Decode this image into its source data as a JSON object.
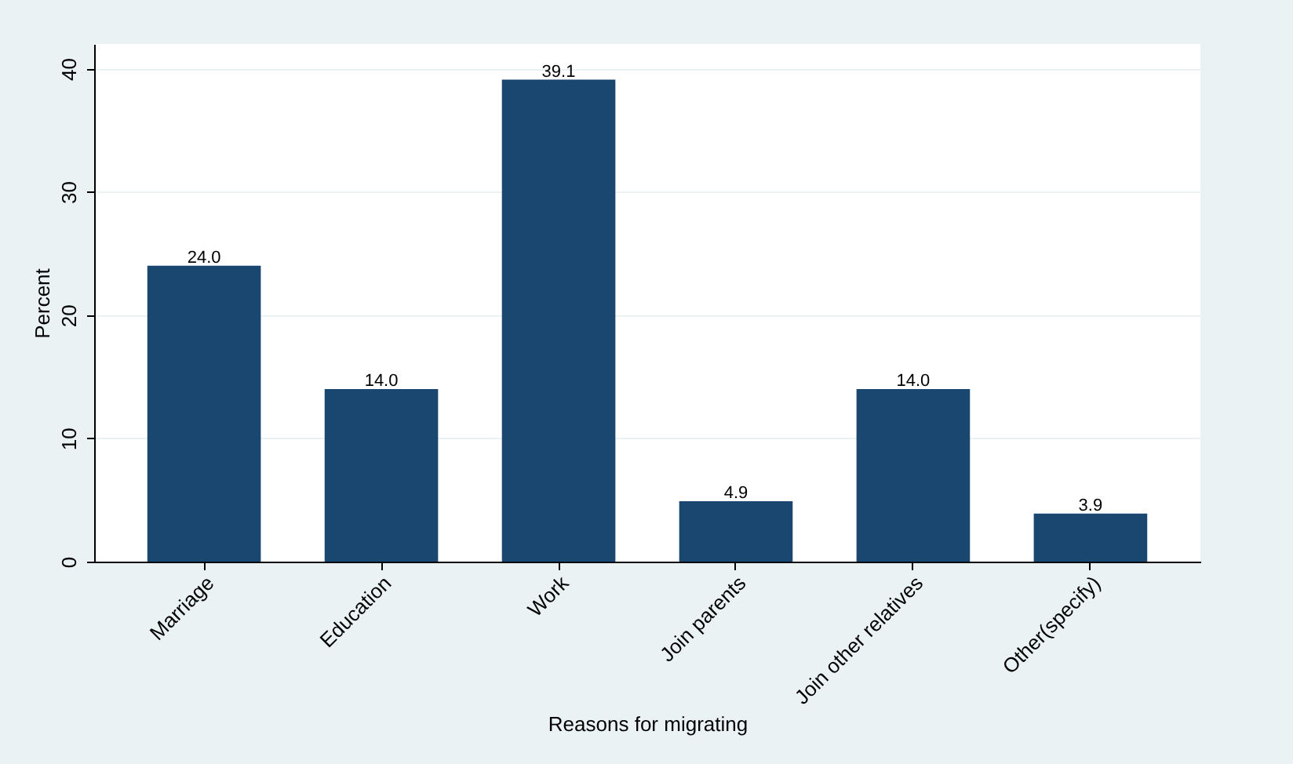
{
  "chart_data": {
    "type": "bar",
    "xlabel": "Reasons for migrating",
    "ylabel": "Percent",
    "categories": [
      "Marriage",
      "Education",
      "Work",
      "Join parents",
      "Join other relatives",
      "Other(specify)"
    ],
    "values": [
      24.0,
      14.0,
      39.1,
      4.9,
      14.0,
      3.9
    ],
    "value_labels": [
      "24.0",
      "14.0",
      "39.1",
      "4.9",
      "14.0",
      "3.9"
    ],
    "color": "#1a476f",
    "ylim": [
      0,
      42
    ],
    "yticks": [
      0,
      10,
      20,
      30,
      40
    ],
    "grid": "y"
  }
}
